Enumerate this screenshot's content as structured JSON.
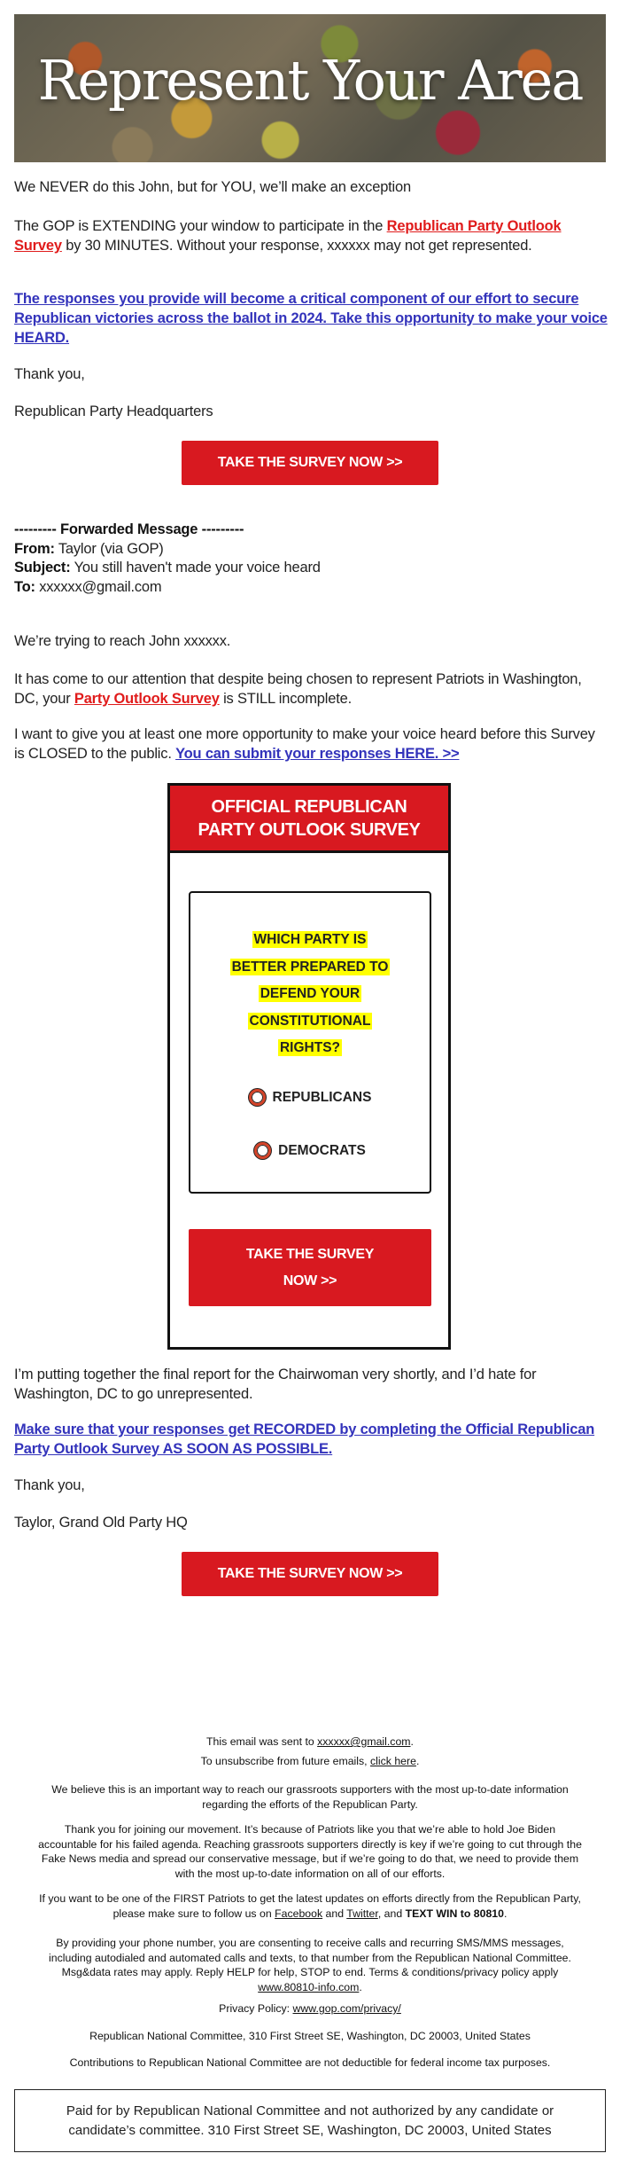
{
  "banner": {
    "title": "Represent Your Area"
  },
  "intro": {
    "line1": "We NEVER do this John, but for YOU, we’ll make an exception",
    "p2_before": "The GOP is EXTENDING your window to participate in the ",
    "p2_link": "Republican Party Outlook Survey",
    "p2_after": " by 30 MINUTES. Without your response, xxxxxx may not get represented.",
    "p3_link": "The responses you provide will become a critical component of our effort to secure Republican victories across the ballot in 2024. Take this opportunity to make your voice HEARD.",
    "thanks": "Thank you,",
    "signature": "Republican Party Headquarters"
  },
  "cta_button": "TAKE THE SURVEY NOW >>",
  "forwarded": {
    "header": "--------- Forwarded Message ---------",
    "from_label": "From:",
    "from": " Taylor (via GOP)",
    "subject_label": "Subject:",
    "subject": " You still haven't made your voice heard",
    "to_label": "To:",
    "to": " xxxxxx@gmail.com"
  },
  "body": {
    "p1": "We’re trying to reach John xxxxxx.",
    "p2_before": "It has come to our attention that despite being chosen to represent Patriots in Washington, DC, your ",
    "p2_link": "Party Outlook Survey",
    "p2_after": " is STILL incomplete.",
    "p3_before": "I want to give you at least one more opportunity to make your voice heard before this Survey is CLOSED to the public. ",
    "p3_link": "You can submit your responses HERE. >>",
    "p4": "I’m putting together the final report for the Chairwoman very shortly, and I’d hate for Washington, DC to go unrepresented.",
    "p5_link": "Make sure that your responses get RECORDED by completing the Official Republican Party Outlook Survey AS SOON AS POSSIBLE.",
    "thanks": "Thank you,",
    "signature": "Taylor, Grand Old Party HQ"
  },
  "survey": {
    "title_line1": "OFFICIAL REPUBLICAN",
    "title_line2": "PARTY OUTLOOK SURVEY",
    "question_lines": [
      "WHICH PARTY IS",
      "BETTER PREPARED TO",
      "DEFEND YOUR",
      "CONSTITUTIONAL",
      "RIGHTS?"
    ],
    "options": [
      "REPUBLICANS",
      "DEMOCRATS"
    ],
    "button_line1": "TAKE THE SURVEY",
    "button_line2": "NOW >>"
  },
  "footer": {
    "sent_before": "This email was sent to ",
    "sent_email": "xxxxxx@gmail.com",
    "sent_after": ".",
    "unsub_before": "To unsubscribe from future emails, ",
    "unsub_link": "click here",
    "unsub_after": ".",
    "believe": "We believe this is an important way to reach our grassroots supporters with the most up-to-date information regarding the efforts of the Republican Party.",
    "thanks": "Thank you for joining our movement. It’s because of Patriots like you that we’re able to hold Joe Biden accountable for his failed agenda. Reaching grassroots supporters directly is key if we’re going to cut through the Fake News media and spread our conservative message, but if we’re going to do that, we need to provide them with the most up-to-date information on all of our efforts.",
    "follow_before": "If you want to be one of the FIRST Patriots to get the latest updates on efforts directly from the Republican Party, please make sure to follow us on ",
    "facebook": "Facebook",
    "and": " and ",
    "twitter": "Twitter",
    "comma_and": ", and ",
    "text_win": "TEXT WIN to 80810",
    "period": ".",
    "sms_before": "By providing your phone number, you are consenting to receive calls and recurring SMS/MMS messages, including autodialed and automated calls and texts, to that number from the Republican National Committee. Msg&data rates may apply. Reply HELP for help, STOP to end. Terms & conditions/privacy policy apply ",
    "sms_link": "www.80810-info.com",
    "privacy_label": "Privacy Policy: ",
    "privacy_link": "www.gop.com/privacy/",
    "address": "Republican National Committee, 310 First Street SE, Washington, DC 20003, United States",
    "contributions": "Contributions to Republican National Committee are not deductible for federal income tax purposes.",
    "paid_for": "Paid for by Republican National Committee and not authorized by any candidate or candidate’s committee. 310 First Street SE, Washington, DC 20003, United States"
  },
  "colors": {
    "accent_red": "#d81920",
    "link_blue": "#3333bb",
    "link_red": "#e01b1b",
    "highlight": "#ffff00"
  }
}
